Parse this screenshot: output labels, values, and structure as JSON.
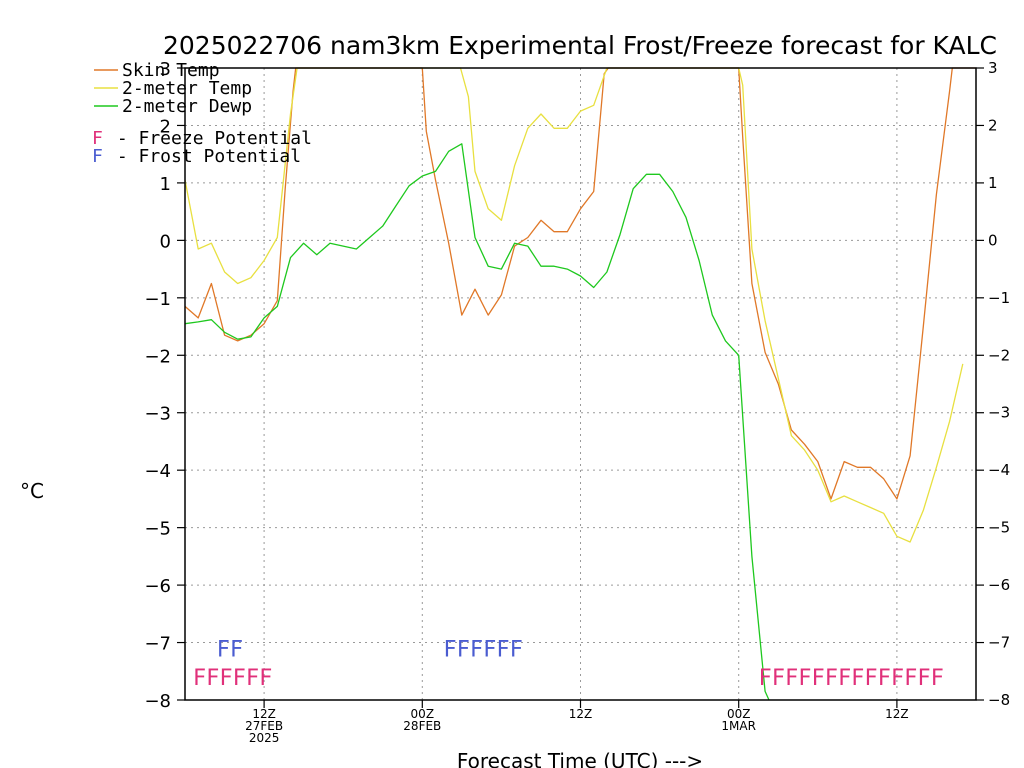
{
  "chart_data": {
    "type": "line",
    "title": "2025022706 nam3km Experimental Frost/Freeze forecast for KALC",
    "ylabel": "°C",
    "xlabel": "Forecast Time (UTC) --->",
    "ylim": [
      -8,
      3
    ],
    "xlim": [
      6,
      66
    ],
    "yticks": [
      3,
      2,
      1,
      0,
      -1,
      -2,
      -3,
      -4,
      -5,
      -6,
      -7,
      -8
    ],
    "ytick_labels": [
      "3",
      "2",
      "1",
      "0",
      "−1",
      "−2",
      "−3",
      "−4",
      "−5",
      "−6",
      "−7",
      "−8"
    ],
    "grid": true,
    "legend_placement": "top-left",
    "x_ticks": [
      {
        "x": 12,
        "lines": [
          "12Z",
          "27FEB",
          "2025"
        ]
      },
      {
        "x": 24,
        "lines": [
          "00Z",
          "28FEB"
        ]
      },
      {
        "x": 36,
        "lines": [
          "12Z"
        ]
      },
      {
        "x": 48,
        "lines": [
          "00Z",
          "1MAR"
        ]
      },
      {
        "x": 60,
        "lines": [
          "12Z"
        ]
      }
    ],
    "series": [
      {
        "name": "Skin Temp",
        "color": "#e07828",
        "points": [
          [
            6,
            -1.15
          ],
          [
            7,
            -1.35
          ],
          [
            8,
            -0.75
          ],
          [
            9,
            -1.65
          ],
          [
            10,
            -1.75
          ],
          [
            11,
            -1.65
          ],
          [
            12,
            -1.45
          ],
          [
            13,
            -1.05
          ],
          [
            13.6,
            0.9
          ],
          [
            14.2,
            2.6
          ],
          [
            14.4,
            3.0
          ],
          [
            24,
            3.0
          ],
          [
            24.3,
            1.9
          ],
          [
            25,
            1.05
          ],
          [
            26,
            -0.05
          ],
          [
            27,
            -1.3
          ],
          [
            28,
            -0.85
          ],
          [
            29,
            -1.3
          ],
          [
            30,
            -0.95
          ],
          [
            31,
            -0.1
          ],
          [
            32,
            0.05
          ],
          [
            33,
            0.35
          ],
          [
            34,
            0.15
          ],
          [
            35,
            0.15
          ],
          [
            36,
            0.55
          ],
          [
            37,
            0.85
          ],
          [
            37.8,
            2.9
          ],
          [
            38.1,
            3.0
          ],
          [
            48,
            3.0
          ],
          [
            48.3,
            1.8
          ],
          [
            49,
            -0.75
          ],
          [
            50,
            -1.95
          ],
          [
            51,
            -2.5
          ],
          [
            52,
            -3.3
          ],
          [
            53,
            -3.55
          ],
          [
            54,
            -3.85
          ],
          [
            55,
            -4.5
          ],
          [
            56,
            -3.85
          ],
          [
            57,
            -3.95
          ],
          [
            58,
            -3.95
          ],
          [
            59,
            -4.15
          ],
          [
            60,
            -4.5
          ],
          [
            61,
            -3.75
          ],
          [
            62,
            -1.5
          ],
          [
            63,
            0.8
          ],
          [
            64,
            2.6
          ],
          [
            64.2,
            3.0
          ],
          [
            66,
            3.0
          ]
        ]
      },
      {
        "name": "2-meter Temp",
        "color": "#e8e040",
        "points": [
          [
            6,
            1.05
          ],
          [
            7,
            -0.15
          ],
          [
            8,
            -0.05
          ],
          [
            9,
            -0.55
          ],
          [
            10,
            -0.75
          ],
          [
            11,
            -0.65
          ],
          [
            12,
            -0.35
          ],
          [
            13,
            0.05
          ],
          [
            14,
            2.2
          ],
          [
            14.5,
            3.0
          ],
          [
            26.9,
            3.0
          ],
          [
            27.5,
            2.5
          ],
          [
            28,
            1.2
          ],
          [
            29,
            0.55
          ],
          [
            30,
            0.35
          ],
          [
            31,
            1.3
          ],
          [
            32,
            1.95
          ],
          [
            33,
            2.2
          ],
          [
            34,
            1.95
          ],
          [
            35,
            1.95
          ],
          [
            36,
            2.25
          ],
          [
            37,
            2.35
          ],
          [
            38,
            3.0
          ],
          [
            48,
            3.0
          ],
          [
            48.3,
            2.7
          ],
          [
            49,
            -0.15
          ],
          [
            50,
            -1.4
          ],
          [
            51,
            -2.4
          ],
          [
            52,
            -3.4
          ],
          [
            53,
            -3.65
          ],
          [
            54,
            -4.0
          ],
          [
            55,
            -4.55
          ],
          [
            56,
            -4.45
          ],
          [
            57,
            -4.55
          ],
          [
            58,
            -4.65
          ],
          [
            59,
            -4.75
          ],
          [
            60,
            -5.15
          ],
          [
            61,
            -5.25
          ],
          [
            62,
            -4.7
          ],
          [
            63,
            -3.95
          ],
          [
            64,
            -3.15
          ],
          [
            65,
            -2.15
          ]
        ]
      },
      {
        "name": "2-meter Dewp",
        "color": "#1ec81e",
        "points": [
          [
            6,
            -1.45
          ],
          [
            7,
            -1.42
          ],
          [
            8,
            -1.38
          ],
          [
            9,
            -1.6
          ],
          [
            10,
            -1.72
          ],
          [
            11,
            -1.68
          ],
          [
            12,
            -1.35
          ],
          [
            13,
            -1.15
          ],
          [
            14,
            -0.3
          ],
          [
            15,
            -0.05
          ],
          [
            16,
            -0.25
          ],
          [
            17,
            -0.05
          ],
          [
            18,
            -0.1
          ],
          [
            19,
            -0.15
          ],
          [
            20,
            0.05
          ],
          [
            21,
            0.25
          ],
          [
            22,
            0.6
          ],
          [
            23,
            0.95
          ],
          [
            24,
            1.12
          ],
          [
            25,
            1.2
          ],
          [
            26,
            1.55
          ],
          [
            27,
            1.68
          ],
          [
            28,
            0.05
          ],
          [
            29,
            -0.45
          ],
          [
            30,
            -0.5
          ],
          [
            31,
            -0.05
          ],
          [
            32,
            -0.1
          ],
          [
            33,
            -0.45
          ],
          [
            34,
            -0.45
          ],
          [
            35,
            -0.5
          ],
          [
            36,
            -0.62
          ],
          [
            37,
            -0.82
          ],
          [
            38,
            -0.55
          ],
          [
            39,
            0.1
          ],
          [
            40,
            0.9
          ],
          [
            41,
            1.15
          ],
          [
            42,
            1.15
          ],
          [
            43,
            0.85
          ],
          [
            44,
            0.4
          ],
          [
            45,
            -0.35
          ],
          [
            46,
            -1.3
          ],
          [
            47,
            -1.75
          ],
          [
            48,
            -2.0
          ],
          [
            49,
            -5.5
          ],
          [
            50,
            -7.85
          ],
          [
            50.3,
            -8.0
          ]
        ]
      }
    ],
    "legend_entries": [
      {
        "label": "Skin Temp",
        "color": "#e07828"
      },
      {
        "label": "2-meter Temp",
        "color": "#e8e040"
      },
      {
        "label": "2-meter Dewp",
        "color": "#1ec81e"
      }
    ],
    "potential_legend": [
      {
        "letter": "F",
        "text": " - Freeze Potential",
        "color": "#e0307a"
      },
      {
        "letter": "F",
        "text": " - Frost Potential",
        "color": "#4a5cd0"
      }
    ],
    "frost_flags": [
      {
        "x_start": 8.4,
        "text": "FF",
        "color": "#4a5cd0",
        "level": -7.1
      },
      {
        "x_start": 25.6,
        "text": "FFFFFF",
        "color": "#4a5cd0",
        "level": -7.1
      }
    ],
    "freeze_flags": [
      {
        "x_start": 6.6,
        "text": "FFFFFF",
        "color": "#e0307a",
        "level": -7.6
      },
      {
        "x_start": 49.5,
        "text": "FFFFFFFFFFFFFF",
        "color": "#e0307a",
        "level": -7.6
      }
    ]
  }
}
